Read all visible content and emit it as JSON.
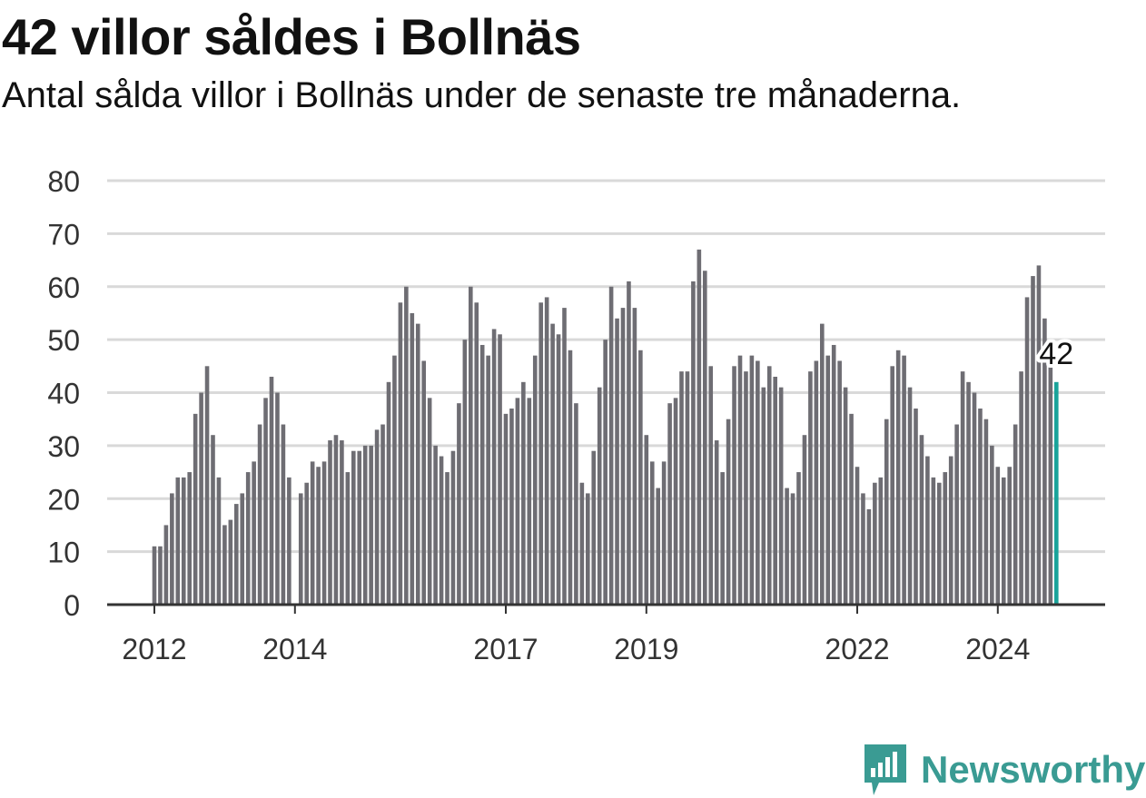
{
  "header": {
    "title": "42 villor såldes i Bollnäs",
    "subtitle": "Antal sålda villor i Bollnäs under de senaste tre månaderna."
  },
  "brand": {
    "name": "Newsworthy",
    "color": "#3a9b93"
  },
  "colors": {
    "bar": "#6e6d73",
    "highlight": "#1aa39a",
    "grid": "#d9d9d9",
    "axis": "#333333"
  },
  "chart_data": {
    "type": "bar",
    "title": "42 villor såldes i Bollnäs",
    "subtitle": "Antal sålda villor i Bollnäs under de senaste tre månaderna.",
    "xlabel": "",
    "ylabel": "",
    "ylim": [
      0,
      80
    ],
    "yticks": [
      0,
      10,
      20,
      30,
      40,
      50,
      60,
      70,
      80
    ],
    "xticks": [
      {
        "label": "2012",
        "index": 0
      },
      {
        "label": "2014",
        "index": 24
      },
      {
        "label": "2017",
        "index": 60
      },
      {
        "label": "2019",
        "index": 84
      },
      {
        "label": "2022",
        "index": 120
      },
      {
        "label": "2024",
        "index": 144
      }
    ],
    "grid": true,
    "start": "2012-01",
    "frequency": "monthly",
    "values": [
      11,
      11,
      15,
      21,
      24,
      24,
      25,
      36,
      40,
      45,
      32,
      24,
      15,
      16,
      19,
      21,
      25,
      27,
      34,
      39,
      43,
      40,
      34,
      24,
      null,
      21,
      23,
      27,
      26,
      27,
      31,
      32,
      31,
      25,
      29,
      29,
      30,
      30,
      33,
      34,
      42,
      47,
      57,
      60,
      55,
      53,
      46,
      39,
      30,
      28,
      25,
      29,
      38,
      50,
      60,
      57,
      49,
      47,
      52,
      51,
      36,
      37,
      39,
      42,
      39,
      47,
      57,
      58,
      53,
      51,
      56,
      48,
      38,
      23,
      21,
      29,
      41,
      50,
      60,
      54,
      56,
      61,
      56,
      48,
      32,
      27,
      22,
      27,
      38,
      39,
      44,
      44,
      61,
      67,
      63,
      45,
      31,
      25,
      35,
      45,
      47,
      44,
      47,
      46,
      41,
      45,
      43,
      41,
      22,
      21,
      25,
      32,
      44,
      46,
      53,
      47,
      49,
      46,
      41,
      36,
      26,
      21,
      18,
      23,
      24,
      35,
      45,
      48,
      47,
      41,
      37,
      32,
      28,
      24,
      23,
      25,
      28,
      34,
      44,
      42,
      40,
      37,
      35,
      30,
      26,
      24,
      26,
      34,
      44,
      58,
      62,
      64,
      54,
      45,
      42
    ],
    "highlight_label": "42"
  }
}
